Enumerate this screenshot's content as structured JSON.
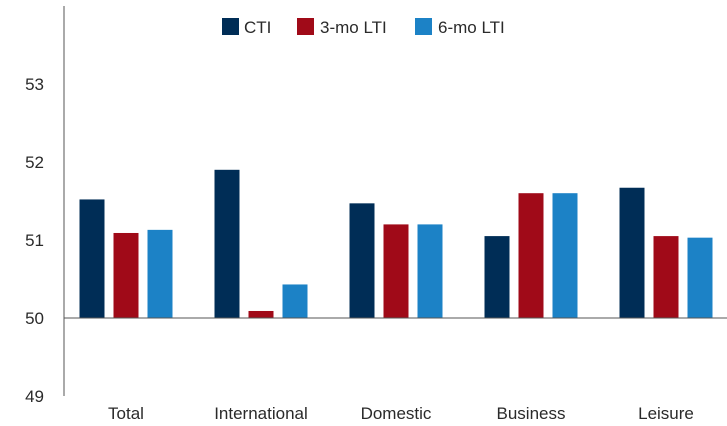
{
  "chart_data": {
    "type": "bar",
    "title": "",
    "xlabel": "",
    "ylabel": "",
    "categories": [
      "Total",
      "International",
      "Domestic",
      "Business",
      "Leisure"
    ],
    "ylim": [
      49,
      54
    ],
    "baseline": 50,
    "yticks": [
      "49",
      "50",
      "51",
      "52",
      "53"
    ],
    "legend_position": "top",
    "grid": false,
    "series": [
      {
        "name": "CTI",
        "color": "#002d56",
        "values": [
          51.52,
          51.9,
          51.47,
          51.05,
          51.67
        ]
      },
      {
        "name": "3-mo LTI",
        "color": "#a00a18",
        "values": [
          51.09,
          50.09,
          51.2,
          51.6,
          51.05
        ]
      },
      {
        "name": "6-mo LTI",
        "color": "#1c82c6",
        "values": [
          51.13,
          50.43,
          51.2,
          51.6,
          51.03
        ]
      }
    ]
  }
}
